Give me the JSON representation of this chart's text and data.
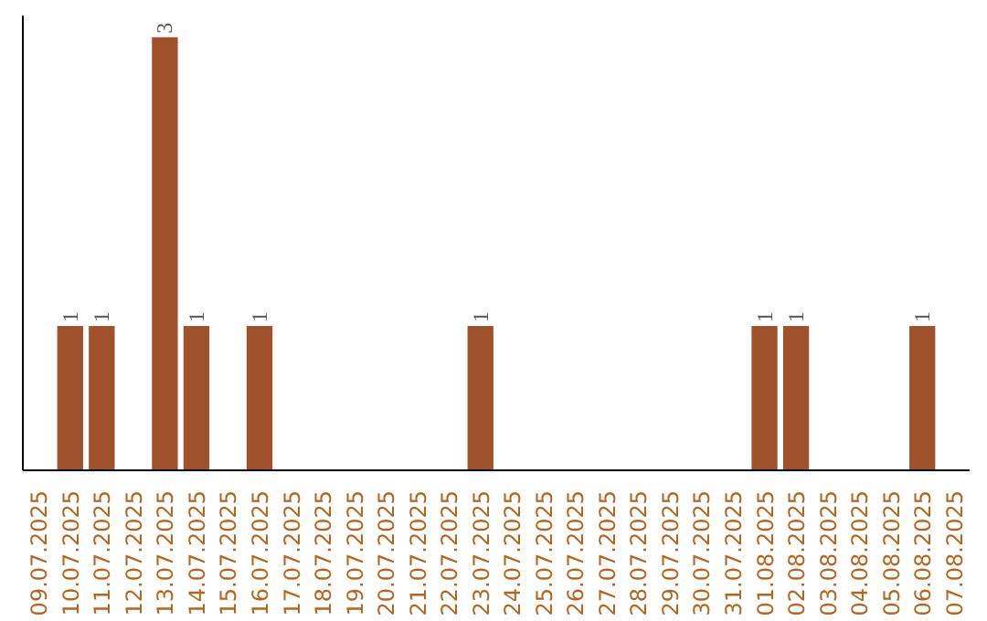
{
  "chart_data": {
    "type": "bar",
    "categories": [
      "09.07.2025",
      "10.07.2025",
      "11.07.2025",
      "12.07.2025",
      "13.07.2025",
      "14.07.2025",
      "15.07.2025",
      "16.07.2025",
      "17.07.2025",
      "18.07.2025",
      "19.07.2025",
      "20.07.2025",
      "21.07.2025",
      "22.07.2025",
      "23.07.2025",
      "24.07.2025",
      "25.07.2025",
      "26.07.2025",
      "27.07.2025",
      "28.07.2025",
      "29.07.2025",
      "30.07.2025",
      "31.07.2025",
      "01.08.2025",
      "02.08.2025",
      "03.08.2025",
      "04.08.2025",
      "05.08.2025",
      "06.08.2025",
      "07.08.2025"
    ],
    "values": [
      0,
      1,
      1,
      0,
      3,
      1,
      0,
      1,
      0,
      0,
      0,
      0,
      0,
      0,
      1,
      0,
      0,
      0,
      0,
      0,
      0,
      0,
      0,
      1,
      1,
      0,
      0,
      0,
      1,
      0
    ],
    "color": "#a0522d",
    "value_labels": [
      null,
      "1",
      "1",
      null,
      "3",
      "1",
      null,
      "1",
      null,
      null,
      null,
      null,
      null,
      null,
      "1",
      null,
      null,
      null,
      null,
      null,
      null,
      null,
      null,
      "1",
      "1",
      null,
      null,
      null,
      "1",
      null
    ],
    "tick_labels": "x",
    "grid": false
  }
}
